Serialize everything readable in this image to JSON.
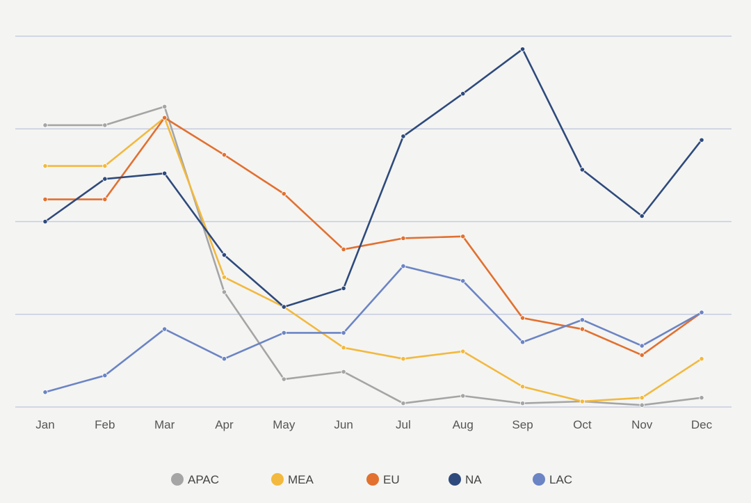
{
  "chart_data": {
    "type": "line",
    "title": "",
    "xlabel": "",
    "ylabel": "",
    "categories": [
      "Jan",
      "Feb",
      "Mar",
      "Apr",
      "May",
      "Jun",
      "Jul",
      "Aug",
      "Sep",
      "Oct",
      "Nov",
      "Dec"
    ],
    "ylim": [
      0,
      100
    ],
    "grid": true,
    "y_ticks_labeled": false,
    "legend_position": "bottom",
    "series": [
      {
        "name": "APAC",
        "color": "#a5a5a5",
        "values": [
          76,
          76,
          81,
          31,
          7.5,
          9.5,
          1,
          3,
          1,
          1.5,
          0.5,
          2.5
        ]
      },
      {
        "name": "MEA",
        "color": "#f2b93e",
        "values": [
          65,
          65,
          78,
          35,
          27,
          16,
          13,
          15,
          5.5,
          1.5,
          2.5,
          13
        ]
      },
      {
        "name": "EU",
        "color": "#e2702f",
        "values": [
          56,
          56,
          78,
          68,
          57.5,
          42.5,
          45.5,
          46,
          24,
          21,
          14,
          25.5
        ]
      },
      {
        "name": "NA",
        "color": "#2e4a7c",
        "values": [
          50,
          61.5,
          63,
          41,
          27,
          32,
          73,
          84.5,
          96.5,
          64,
          51.5,
          72
        ]
      },
      {
        "name": "LAC",
        "color": "#6b84c4",
        "values": [
          4,
          8.5,
          21,
          13,
          20,
          20,
          38,
          34,
          17.5,
          23.5,
          16.5,
          25.5
        ]
      }
    ]
  }
}
